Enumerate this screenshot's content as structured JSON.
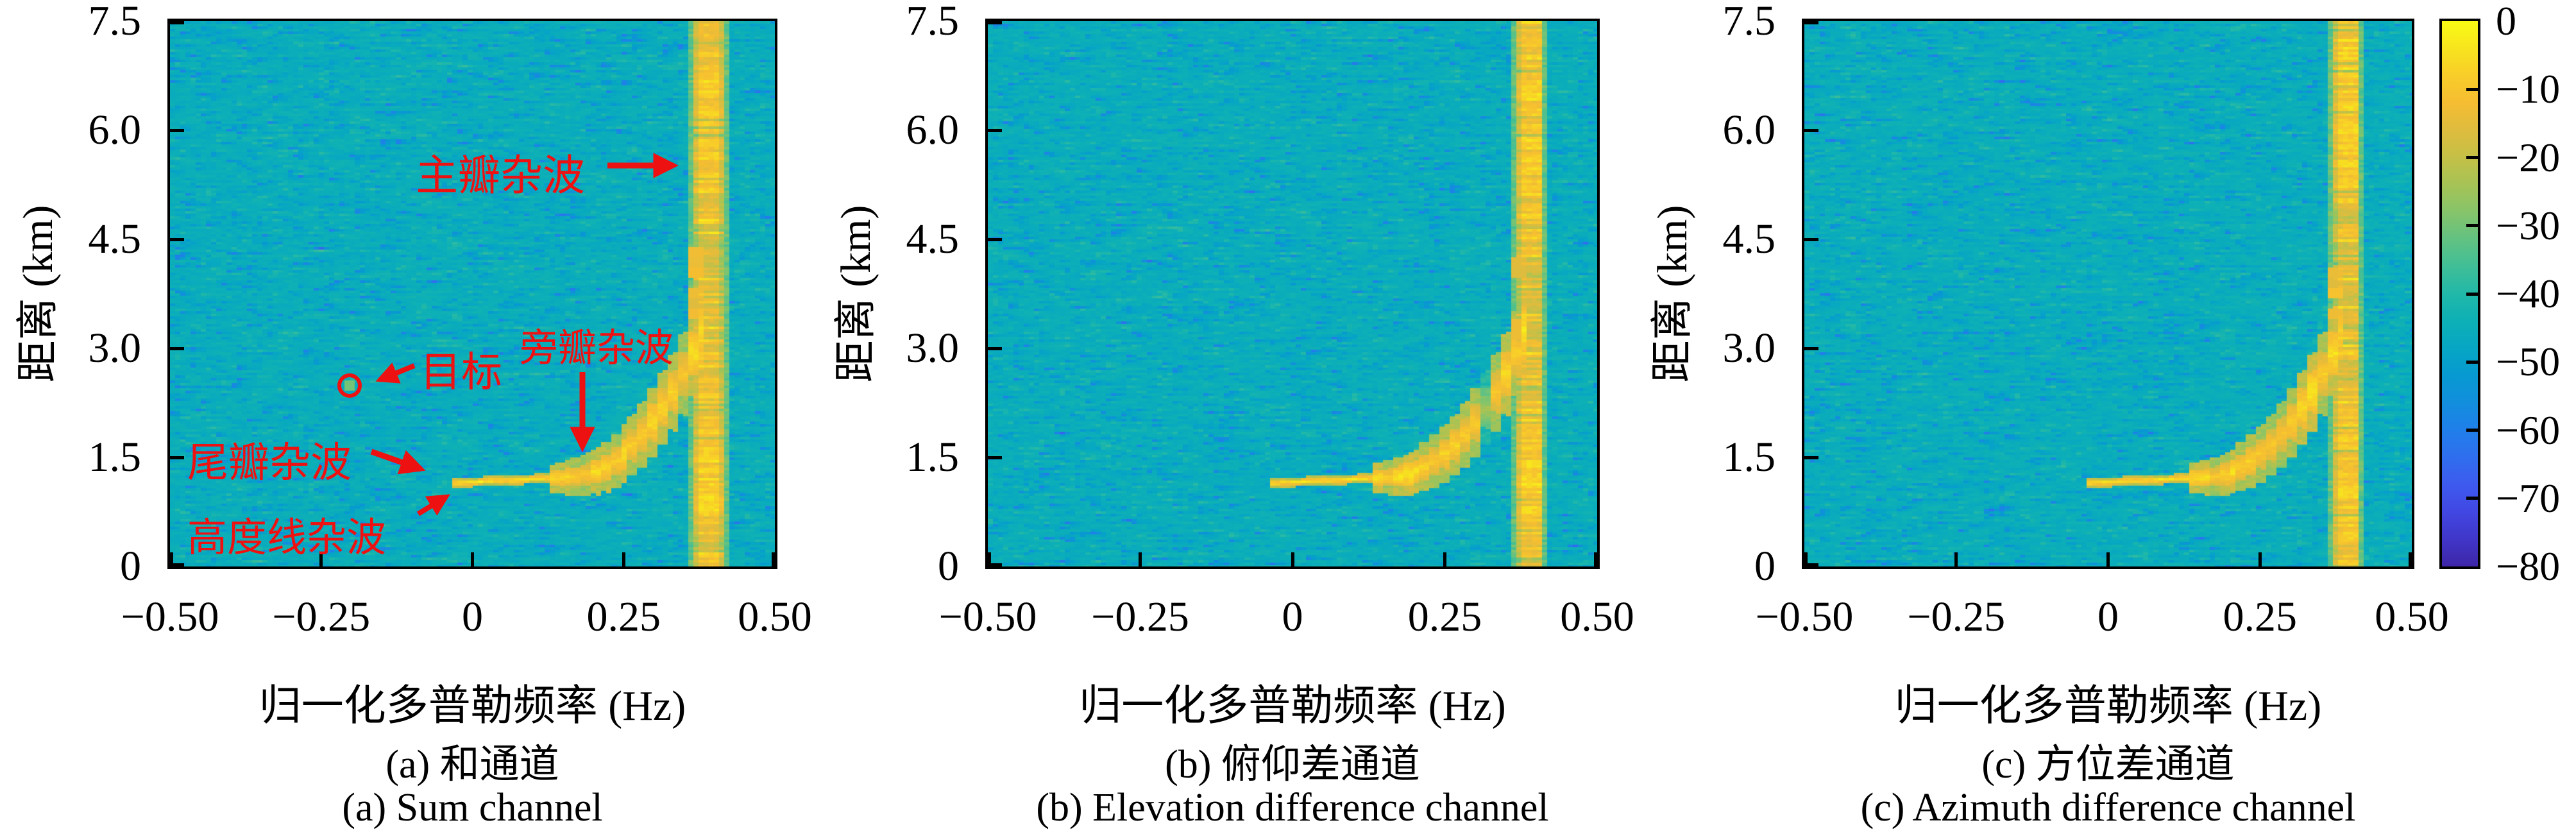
{
  "axes": {
    "x": {
      "label": "归一化多普勒频率 (Hz)",
      "ticks": [
        "−0.50",
        "−0.25",
        "0",
        "0.25",
        "0.50"
      ],
      "range": [
        -0.5,
        0.5
      ]
    },
    "y": {
      "label": "距离 (km)",
      "ticks": [
        "7.5",
        "6.0",
        "4.5",
        "3.0",
        "1.5",
        "0"
      ],
      "range": [
        0,
        7.5
      ]
    }
  },
  "colorbar": {
    "tick_labels": [
      "0",
      "−10",
      "−20",
      "−30",
      "−40",
      "−50",
      "−60",
      "−70",
      "−80"
    ],
    "range_db": [
      0,
      -80
    ],
    "colormap": "parula"
  },
  "panels": [
    {
      "id": "a",
      "caption_zh": "(a) 和通道",
      "caption_en": "(a) Sum channel"
    },
    {
      "id": "b",
      "caption_zh": "(b) 俯仰差通道",
      "caption_en": "(b) Elevation difference channel"
    },
    {
      "id": "c",
      "caption_zh": "(c) 方位差通道",
      "caption_en": "(c) Azimuth difference channel"
    }
  ],
  "annotations": {
    "color": "#ee1111",
    "main_lobe": "主瓣杂波",
    "target": "目标",
    "side_lobe": "旁瓣杂波",
    "tail_lobe": "尾瓣杂波",
    "altitude_line": "高度线杂波"
  },
  "chart_data": {
    "type": "heatmap",
    "title": "",
    "xlabel": "归一化多普勒频率 (Hz)",
    "ylabel": "距离 (km)",
    "xlim": [
      -0.5,
      0.5
    ],
    "ylim": [
      0,
      7.5
    ],
    "x_ticks": [
      -0.5,
      -0.25,
      0,
      0.25,
      0.5
    ],
    "y_ticks": [
      0,
      1.5,
      3.0,
      4.5,
      6.0,
      7.5
    ],
    "color_scale_db": {
      "min": -80,
      "max": 0,
      "tick_step": 10,
      "colormap": "parula",
      "legend_position": "right"
    },
    "panels": [
      {
        "name": "sum_channel",
        "caption_zh": "(a) 和通道",
        "caption_en": "(a) Sum channel",
        "annotated": true
      },
      {
        "name": "elevation_difference_channel",
        "caption_zh": "(b) 俯仰差通道",
        "caption_en": "(b) Elevation difference channel",
        "annotated": false
      },
      {
        "name": "azimuth_difference_channel",
        "caption_zh": "(c) 方位差通道",
        "caption_en": "(c) Azimuth difference channel",
        "annotated": false
      }
    ],
    "features_common_to_all_panels": {
      "noise_floor_db": -45,
      "main_lobe_clutter_band": {
        "doppler_center": 0.39,
        "doppler_width": 0.05,
        "range_km": [
          0,
          7.5
        ],
        "level_db": -10
      },
      "altitude_line_clutter": {
        "doppler": [
          -0.03,
          0.13
        ],
        "range_km": 1.2,
        "level_db": -5
      },
      "sidelobe_clutter_ridge": {
        "doppler": [
          0.13,
          0.385
        ],
        "range_km_start": 1.25,
        "range_km_end": 4.4,
        "shape": "quadratic rise merging into main-lobe band",
        "level_db": -8
      },
      "tail_lobe_clutter": {
        "doppler": -0.04,
        "range_km": 1.2,
        "level_db": -20
      }
    },
    "target_marker": {
      "panel": "sum_channel",
      "doppler": -0.2,
      "range_km": 2.5,
      "marker": "red circle",
      "level_db": -30
    },
    "annotation_arrows": [
      {
        "label": "主瓣杂波",
        "points_to": {
          "doppler": 0.39,
          "range_km": 5.5
        }
      },
      {
        "label": "目标",
        "points_to": {
          "doppler": -0.2,
          "range_km": 2.5
        }
      },
      {
        "label": "旁瓣杂波",
        "points_to": {
          "doppler": 0.18,
          "range_km": 1.35
        }
      },
      {
        "label": "尾瓣杂波",
        "points_to": {
          "doppler": -0.04,
          "range_km": 1.2
        }
      },
      {
        "label": "高度线杂波",
        "points_to": {
          "doppler": -0.01,
          "range_km": 1.1
        }
      }
    ],
    "grid": false
  }
}
